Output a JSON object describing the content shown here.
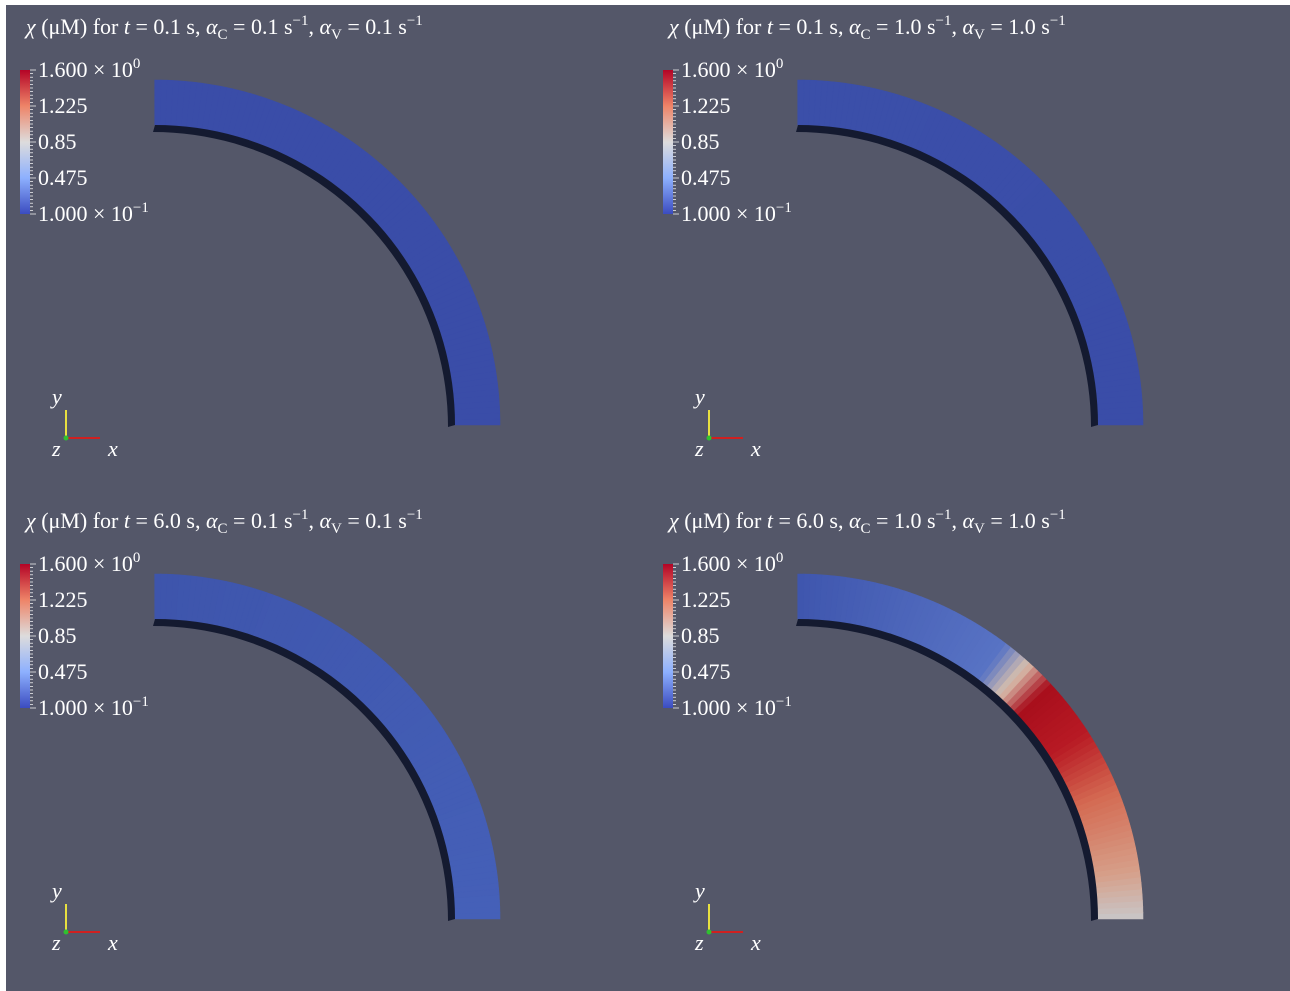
{
  "panels": [
    {
      "title": [
        "χ",
        " (μM) for ",
        "t",
        " = 0.1 s, ",
        "α",
        "C",
        " = 0.1 s",
        "−1",
        ", ",
        "α",
        "V",
        " = 0.1 s",
        "−1"
      ],
      "colorbar": {
        "max": {
          "base": "1.600 × 10",
          "exponent": "0"
        },
        "ticks": [
          "1.225",
          "0.85",
          "0.475"
        ],
        "min": {
          "base": "1.000 × 10",
          "exponent": "−1"
        }
      },
      "axes": {
        "y": "y",
        "z": "z",
        "x": "x"
      }
    },
    {
      "title": [
        "χ",
        " (μM) for ",
        "t",
        " = 0.1 s, ",
        "α",
        "C",
        " = 1.0 s",
        "−1",
        ", ",
        "α",
        "V",
        " = 1.0 s",
        "−1"
      ],
      "colorbar": {
        "max": {
          "base": "1.600 × 10",
          "exponent": "0"
        },
        "ticks": [
          "1.225",
          "0.85",
          "0.475"
        ],
        "min": {
          "base": "1.000 × 10",
          "exponent": "−1"
        }
      },
      "axes": {
        "y": "y",
        "z": "z",
        "x": "x"
      }
    },
    {
      "title": [
        "χ",
        " (μM) for ",
        "t",
        " = 6.0 s, ",
        "α",
        "C",
        " = 0.1 s",
        "−1",
        ", ",
        "α",
        "V",
        " = 0.1 s",
        "−1"
      ],
      "colorbar": {
        "max": {
          "base": "1.600 × 10",
          "exponent": "0"
        },
        "ticks": [
          "1.225",
          "0.85",
          "0.475"
        ],
        "min": {
          "base": "1.000 × 10",
          "exponent": "−1"
        }
      },
      "axes": {
        "y": "y",
        "z": "z",
        "x": "x"
      }
    },
    {
      "title": [
        "χ",
        " (μM) for ",
        "t",
        " = 6.0 s, ",
        "α",
        "C",
        " = 1.0 s",
        "−1",
        ", ",
        "α",
        "V",
        " = 1.0 s",
        "−1"
      ],
      "colorbar": {
        "max": {
          "base": "1.600 × 10",
          "exponent": "0"
        },
        "ticks": [
          "1.225",
          "0.85",
          "0.475"
        ],
        "min": {
          "base": "1.000 × 10",
          "exponent": "−1"
        }
      },
      "axes": {
        "y": "y",
        "z": "z",
        "x": "x"
      }
    }
  ]
}
